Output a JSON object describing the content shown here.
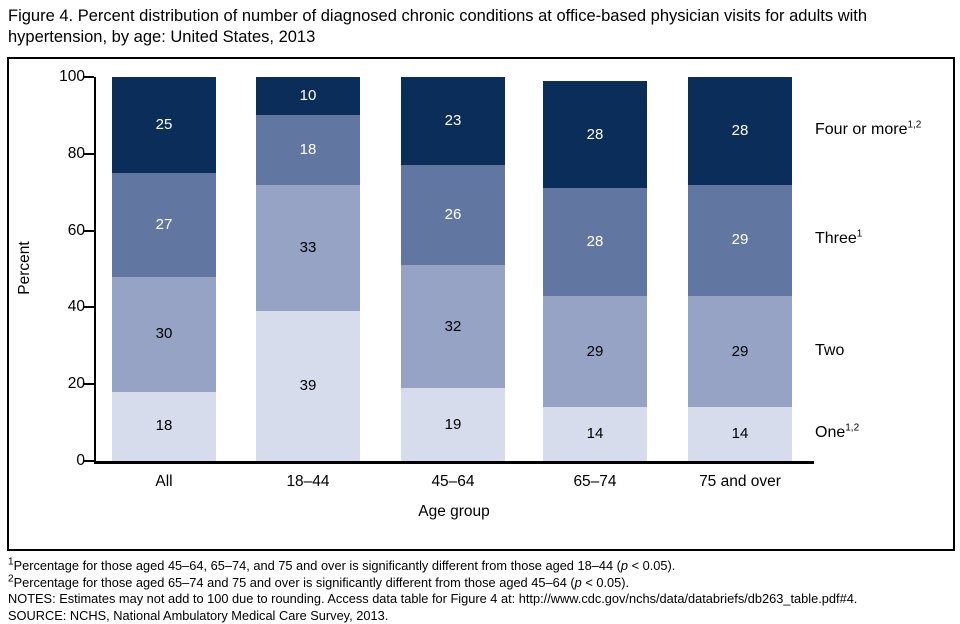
{
  "title": "Figure 4. Percent distribution of number of diagnosed chronic conditions at office-based physician visits for adults with hypertension, by age: United States, 2013",
  "chart_data": {
    "type": "bar",
    "stacked": true,
    "title": "Figure 4. Percent distribution of number of diagnosed chronic conditions at office-based physician visits for adults with hypertension, by age: United States, 2013",
    "categories": [
      "All",
      "18–44",
      "45–64",
      "65–74",
      "75 and over"
    ],
    "series": [
      {
        "name": "One",
        "sup": "1,2",
        "color": "#d6dcec",
        "label_color": "#000000",
        "values": [
          18,
          39,
          19,
          14,
          14
        ]
      },
      {
        "name": "Two",
        "sup": "",
        "color": "#97a3c5",
        "label_color": "#000000",
        "values": [
          30,
          33,
          32,
          29,
          29
        ]
      },
      {
        "name": "Three",
        "sup": "1",
        "color": "#6177a1",
        "label_color": "#ffffff",
        "values": [
          27,
          18,
          26,
          28,
          29
        ]
      },
      {
        "name": "Four or more",
        "sup": "1,2",
        "color": "#0a2d5a",
        "label_color": "#ffffff",
        "values": [
          25,
          10,
          23,
          28,
          28
        ]
      }
    ],
    "xlabel": "Age group",
    "ylabel": "Percent",
    "ylim": [
      0,
      100
    ],
    "yticks": [
      0,
      20,
      40,
      60,
      80,
      100
    ],
    "grid": false,
    "legend_position": "right of last bar, aligned to segment centers"
  },
  "footnotes": [
    {
      "runs": [
        {
          "s": "sup",
          "t": "1"
        },
        {
          "s": "n",
          "t": "Percentage for those aged 45–64, 65–74, and 75 and over is significantly different from those aged 18–44 ("
        },
        {
          "s": "i",
          "t": "p"
        },
        {
          "s": "n",
          "t": " < 0.05)."
        }
      ]
    },
    {
      "runs": [
        {
          "s": "sup",
          "t": "2"
        },
        {
          "s": "n",
          "t": "Percentage for those aged 65–74 and 75 and over is significantly different from those aged 45–64 ("
        },
        {
          "s": "i",
          "t": "p"
        },
        {
          "s": "n",
          "t": " < 0.05)."
        }
      ]
    },
    {
      "runs": [
        {
          "s": "n",
          "t": "NOTES: Estimates may not add to 100 due to rounding. Access data table for Figure 4 at: http://www.cdc.gov/nchs/data/databriefs/db263_table.pdf#4."
        }
      ]
    },
    {
      "runs": [
        {
          "s": "n",
          "t": "SOURCE: NCHS, National Ambulatory Medical Care Survey, 2013."
        }
      ]
    }
  ]
}
